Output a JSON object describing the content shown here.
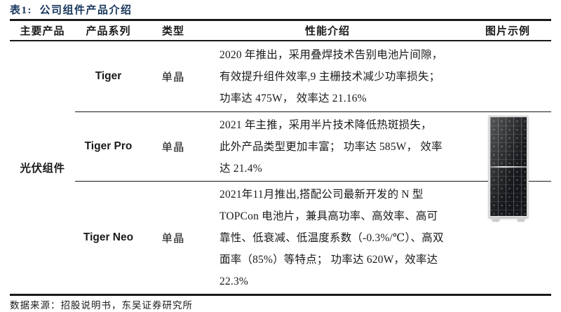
{
  "page": {
    "title": "表1:  公司组件产品介绍",
    "source_note": "数据来源：招股说明书，东吴证券研究所"
  },
  "colors": {
    "title_navy": "#17365D",
    "text": "#1a1a1a",
    "table_line": "#1a1a1a",
    "panel_dark": "#16171a"
  },
  "table": {
    "headers": {
      "main_product": "主要产品",
      "series": "产品系列",
      "type": "类型",
      "performance": "性能介绍",
      "image": "图片示例"
    },
    "main_product": "光伏组件",
    "rows": [
      {
        "series": "Tiger",
        "type": "单晶",
        "performance": "2020 年推出，采用叠焊技术告别电池片间隙，\n有效提升组件效率,9 主栅技术减少功率损失；\n功率达 475W， 效率达 21.16%"
      },
      {
        "series": "Tiger Pro",
        "type": "单晶",
        "performance": "2021 年主推，采用半片技术降低热斑损失，\n此外产品类型更加丰富； 功率达 585W， 效率\n达 21.4%"
      },
      {
        "series": "Tiger Neo",
        "type": "单晶",
        "performance": "2021年11月推出,搭配公司最新开发的 N 型\nTOPCon 电池片，兼具高功率、高效率、高可\n靠性、低衰减、低温度系数（-0.3%/℃）、高双\n面率（85%）等特点； 功率达 620W，效率达\n22.3%"
      }
    ],
    "image_label": "solar-panel-module-photo"
  }
}
